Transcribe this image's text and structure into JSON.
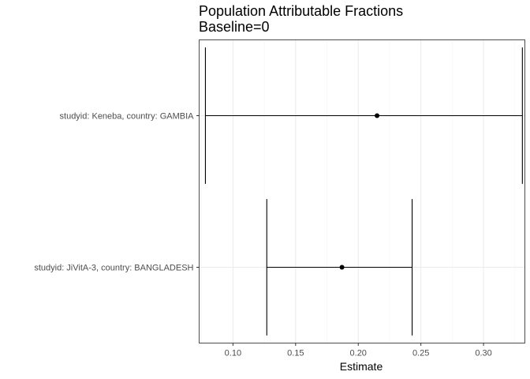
{
  "chart_data": {
    "type": "forest",
    "title": "Population Attributable Fractions",
    "subtitle": "Baseline=0",
    "xlabel": "Estimate",
    "ylabel": "",
    "xlim": [
      0.073,
      0.333
    ],
    "x_ticks": [
      0.1,
      0.15,
      0.2,
      0.25,
      0.3
    ],
    "x_tick_labels": [
      "0.10",
      "0.15",
      "0.20",
      "0.25",
      "0.30"
    ],
    "grid": true,
    "categories": [
      "studyid: Keneba, country: GAMBIA",
      "studyid: JiVitA-3, country: BANGLADESH"
    ],
    "series": [
      {
        "estimate": [
          0.215,
          0.187
        ],
        "lower": [
          0.078,
          0.127
        ],
        "upper": [
          0.331,
          0.243
        ]
      }
    ],
    "colors": {
      "panel_border": "#4d4d4d",
      "grid_major": "#ebebeb",
      "grid_minor": "#f5f5f5",
      "mark": "#000000"
    }
  }
}
